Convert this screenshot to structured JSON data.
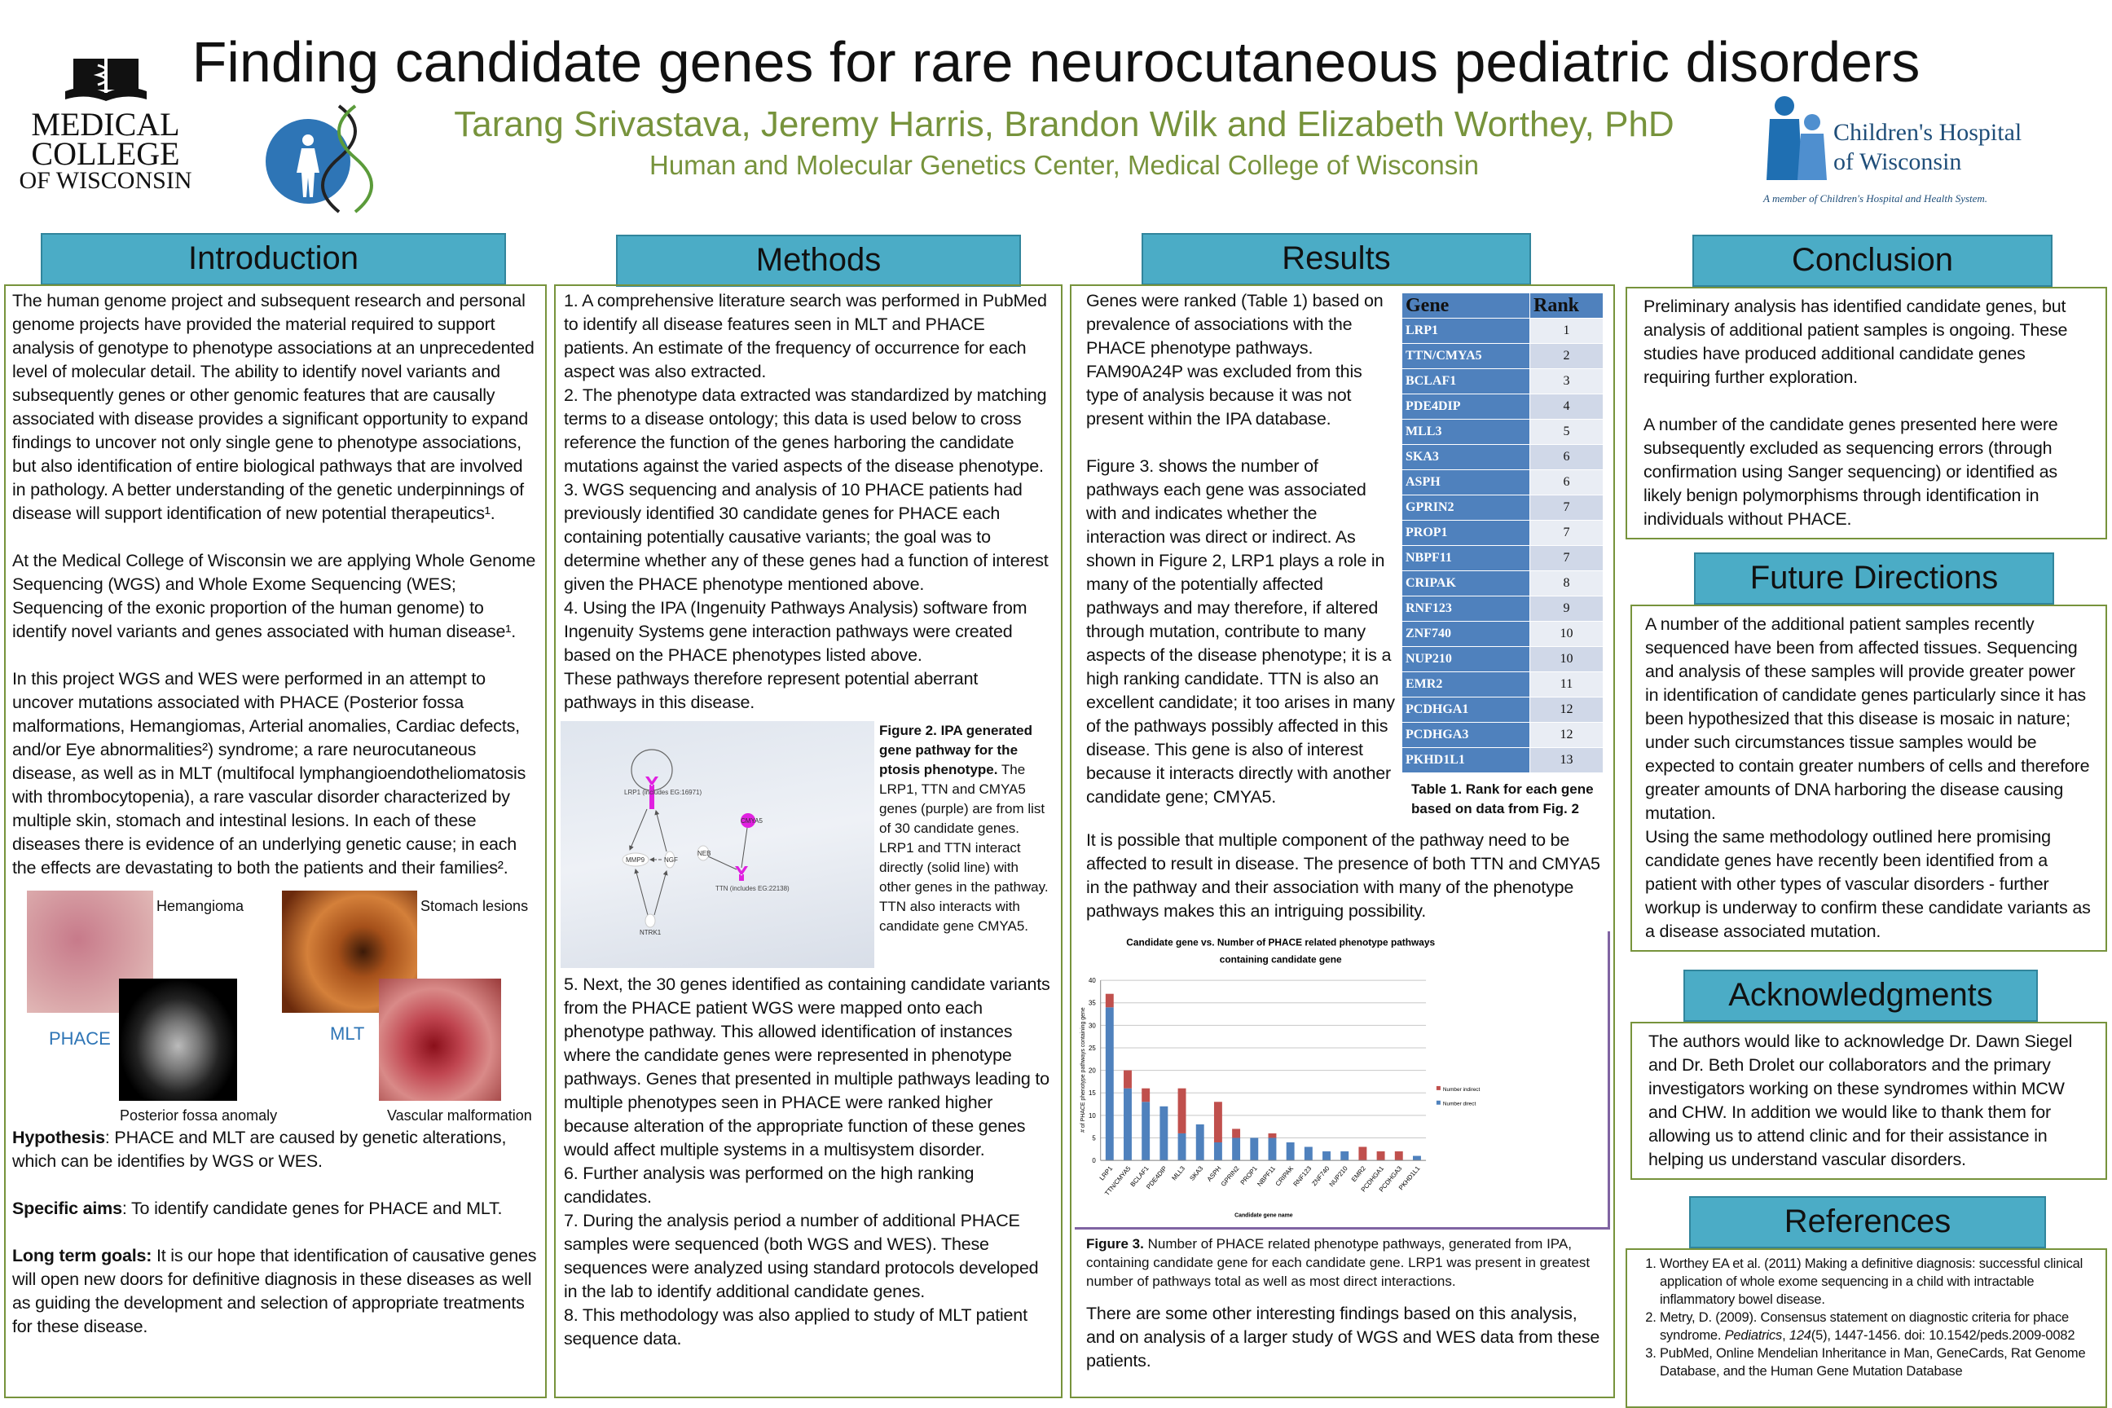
{
  "header": {
    "title": "Finding candidate genes for rare neurocutaneous pediatric disorders",
    "authors": "Tarang Srivastava, Jeremy Harris, Brandon Wilk and Elizabeth Worthey, PhD",
    "affiliation": "Human and Molecular Genetics Center, Medical College of Wisconsin",
    "mcw_logo": [
      "MEDICAL",
      "COLLEGE",
      "OF WISCONSIN"
    ],
    "chw_logo": {
      "line1": "Children's Hospital",
      "line2": "of Wisconsin",
      "tagline": "A member of Children's Hospital and Health System."
    }
  },
  "introduction": {
    "heading": "Introduction",
    "paragraphs": [
      "The human genome project and subsequent research and personal genome projects have provided the material required to support analysis of genotype to phenotype associations at an unprecedented level of molecular detail. The ability to identify novel variants and subsequently genes or other genomic features that are causally associated with disease provides a significant opportunity to expand findings to uncover not only single gene to phenotype associations, but also identification of entire biological pathways that are involved in pathology. A better understanding of the genetic underpinnings of disease will support identification of new potential therapeutics¹.",
      "At the Medical College of Wisconsin we are applying Whole Genome Sequencing (WGS) and Whole Exome Sequencing (WES; Sequencing of the exonic proportion of the human genome) to identify novel variants and genes associated with human disease¹.",
      "In this project WGS and WES were performed in an attempt to uncover mutations associated with PHACE (Posterior fossa malformations, Hemangiomas, Arterial anomalies, Cardiac defects, and/or Eye abnormalities²) syndrome; a rare neurocutaneous disease, as well as in MLT (multifocal lymphangioendotheliomatosis with thrombocytopenia), a rare vascular disorder characterized by multiple skin, stomach and intestinal lesions. In each of these diseases there is evidence of an underlying genetic cause; in each the effects are devastating to both the patients and their families²."
    ],
    "images": {
      "hemangioma": "Hemangioma",
      "stomach": "Stomach lesions",
      "phace": "PHACE",
      "mlt": "MLT",
      "posterior": "Posterior fossa anomaly",
      "vascular": "Vascular malformation"
    },
    "hypothesis_label": "Hypothesis",
    "hypothesis": ": PHACE and MLT are caused by genetic alterations, which can be identifies by WGS or WES.",
    "aims_label": "Specific aims",
    "aims": ": To identify candidate genes for PHACE and MLT.",
    "goals_label": "Long term goals:",
    "goals": " It is our hope that identification of causative genes will open new doors for definitive diagnosis in these diseases as well as guiding the development and selection of appropriate treatments for these disease."
  },
  "methods": {
    "heading": "Methods",
    "steps_top": [
      "1. A comprehensive literature search was performed in PubMed to identify all disease features seen in MLT and PHACE patients. An estimate of the frequency of occurrence for each aspect was also extracted.",
      "2. The phenotype data extracted was standardized by matching terms to  a disease ontology; this data is used below to cross reference the function of the genes harboring the candidate mutations against the varied aspects of the disease phenotype.",
      "3. WGS sequencing and analysis of 10 PHACE patients had previously identified 30 candidate genes for PHACE each containing potentially causative variants; the goal was to determine whether any of these genes had a function of interest given the PHACE phenotype mentioned above.",
      "4. Using the IPA (Ingenuity Pathways Analysis) software from Ingenuity Systems gene interaction pathways were created based on the PHACE phenotypes listed above.",
      "These pathways therefore represent potential aberrant pathways in this disease."
    ],
    "figure2": {
      "title": "Figure 2. IPA generated gene pathway for the ptosis phenotype.",
      "caption": "The LRP1, TTN and CMYA5 genes (purple) are from list of 30 candidate genes. LRP1 and TTN interact directly (solid line) with other genes in the pathway. TTN also interacts with candidate gene CMYA5.",
      "nodes": {
        "lrp1": "LRP1 (includes EG:16971)",
        "mmp9": "MMP9",
        "ngf": "NGF",
        "ntrk1": "NTRK1",
        "cmya5": "CMYA5",
        "neb": "NEB",
        "ttn": "TTN (includes EG:22138)"
      }
    },
    "steps_bottom": [
      "5. Next, the 30 genes identified as containing candidate variants from the  PHACE patient WGS were mapped onto each phenotype pathway. This allowed identification of instances where the candidate genes were represented in phenotype pathways. Genes that presented in multiple pathways leading to multiple phenotypes seen in PHACE were ranked higher because alteration of the appropriate function of these genes would affect multiple systems in a multisystem disorder.",
      "6. Further analysis was performed on the high ranking candidates.",
      "7. During the analysis period a number of additional PHACE samples were sequenced (both WGS and WES). These sequences were analyzed using standard protocols developed in the lab to identify additional candidate genes.",
      "8. This methodology was also applied to study of MLT patient sequence data."
    ]
  },
  "results": {
    "heading": "Results",
    "para1": "Genes were ranked (Table 1) based on prevalence of associations with the PHACE phenotype pathways. FAM90A24P was excluded from this type of analysis because it was not present within the IPA database.",
    "para2": "Figure 3. shows the number of pathways each gene was associated with and indicates whether the interaction was direct or indirect. As shown in Figure 2, LRP1 plays a role in many of the potentially affected pathways and may therefore, if altered through mutation, contribute to many aspects of the disease phenotype; it is a high ranking candidate. TTN is also an excellent candidate; it too arises in many of the pathways possibly affected in this disease. This gene is also of interest because it interacts directly with another candidate gene; CMYA5.",
    "para3": "It is possible that multiple component of the pathway need to be affected to result in disease. The presence of both TTN and CMYA5 in the pathway and their association with many of the phenotype pathways makes this an intriguing possibility.",
    "table": {
      "headers": [
        "Gene",
        "Rank"
      ],
      "rows": [
        [
          "LRP1",
          "1"
        ],
        [
          "TTN/CMYA5",
          "2"
        ],
        [
          "BCLAF1",
          "3"
        ],
        [
          "PDE4DIP",
          "4"
        ],
        [
          "MLL3",
          "5"
        ],
        [
          "SKA3",
          "6"
        ],
        [
          "ASPH",
          "6"
        ],
        [
          "GPRIN2",
          "7"
        ],
        [
          "PROP1",
          "7"
        ],
        [
          "NBPF11",
          "7"
        ],
        [
          "CRIPAK",
          "8"
        ],
        [
          "RNF123",
          "9"
        ],
        [
          "ZNF740",
          "10"
        ],
        [
          "NUP210",
          "10"
        ],
        [
          "EMR2",
          "11"
        ],
        [
          "PCDHGA1",
          "12"
        ],
        [
          "PCDHGA3",
          "12"
        ],
        [
          "PKHD1L1",
          "13"
        ]
      ],
      "caption": "Table 1. Rank for each gene based on data from Fig. 2"
    },
    "fig3_label": "Figure 3.",
    "fig3_caption": " Number of PHACE related phenotype pathways, generated from IPA, containing candidate gene for each candidate gene. LRP1 was present in greatest number of pathways total as well as most direct interactions.",
    "para4": "There are some other interesting findings based on this analysis, and on analysis of a larger study of WGS and WES data from these patients."
  },
  "chart_data": {
    "type": "bar",
    "stacked": true,
    "title": "Candidate gene vs. Number of PHACE related phenotype pathways containing candidate gene",
    "title_lines": [
      "Candidate gene vs. Number of PHACE related phenotype pathways",
      "containing candidate gene"
    ],
    "xlabel": "Candidate gene name",
    "ylabel": "# of PHACE phenotype pathways containing gene",
    "ylim": [
      0,
      40
    ],
    "yticks": [
      "0",
      "5",
      "10",
      "15",
      "20",
      "25",
      "30",
      "35",
      "40"
    ],
    "grid": true,
    "legend_position": "right",
    "categories": [
      "LRP1",
      "TTN/CMYA5",
      "BCLAF1",
      "PDE4DIP",
      "MLL3",
      "SKA3",
      "ASPH",
      "GPRIN2",
      "PROP1",
      "NBPF11",
      "CRIPAK",
      "RNF123",
      "ZNF740",
      "NUP210",
      "EMR2",
      "PCDHGA1",
      "PCDHGA3",
      "PKHD1L1"
    ],
    "series": [
      {
        "name": "Number direct",
        "color": "#4f81bd",
        "values": [
          34,
          16,
          13,
          12,
          6,
          8,
          4,
          5,
          5,
          5,
          4,
          3,
          2,
          2,
          0,
          0,
          0,
          1
        ]
      },
      {
        "name": "Number indirect",
        "color": "#c0504d",
        "values": [
          3,
          4,
          3,
          0,
          10,
          0,
          9,
          2,
          0,
          1,
          0,
          0,
          0,
          0,
          3,
          2,
          2,
          0
        ]
      }
    ]
  },
  "conclusion": {
    "heading": "Conclusion",
    "paragraphs": [
      "Preliminary analysis has identified candidate genes, but analysis of additional patient samples is ongoing. These studies have produced additional candidate genes requiring further exploration.",
      "A number of the candidate genes presented here were subsequently excluded as sequencing errors (through confirmation using Sanger sequencing) or identified as likely benign polymorphisms through identification in individuals without PHACE."
    ]
  },
  "future": {
    "heading": "Future Directions",
    "paragraphs": [
      "A number of the additional patient samples recently sequenced have been from affected tissues. Sequencing and analysis of these samples will provide greater power in identification of candidate genes particularly since it has been hypothesized that this disease is mosaic in nature; under such circumstances tissue samples would be expected to contain greater numbers of cells and therefore greater amounts of DNA harboring the disease causing mutation.",
      "Using the same methodology outlined here promising candidate genes have recently been identified from a patient with other types of vascular disorders - further workup is underway to confirm these candidate variants as a disease associated mutation."
    ]
  },
  "acknowledgments": {
    "heading": "Acknowledgments",
    "text": "The authors would like to acknowledge Dr. Dawn Siegel and Dr. Beth Drolet our collaborators and the primary investigators working on these syndromes within MCW and CHW. In addition we would like to thank them for allowing us to attend clinic and for their assistance in helping us understand vascular disorders."
  },
  "references": {
    "heading": "References",
    "items": [
      {
        "text": "Worthey EA et al. (2011) Making a definitive diagnosis: successful clinical application of whole exome sequencing in a child with intractable inflammatory bowel disease."
      },
      {
        "pre": "Metry, D. (2009). Consensus statement on diagnostic criteria for phace syndrome. ",
        "journal": "Pediatrics",
        "sep": ", ",
        "vol": "124",
        "post": "(5), 1447-1456. doi: 10.1542/peds.2009-0082"
      },
      {
        "text": "PubMed, Online Mendelian Inheritance in Man, GeneCards, Rat Genome Database, and  the Human Gene Mutation Database"
      }
    ]
  }
}
